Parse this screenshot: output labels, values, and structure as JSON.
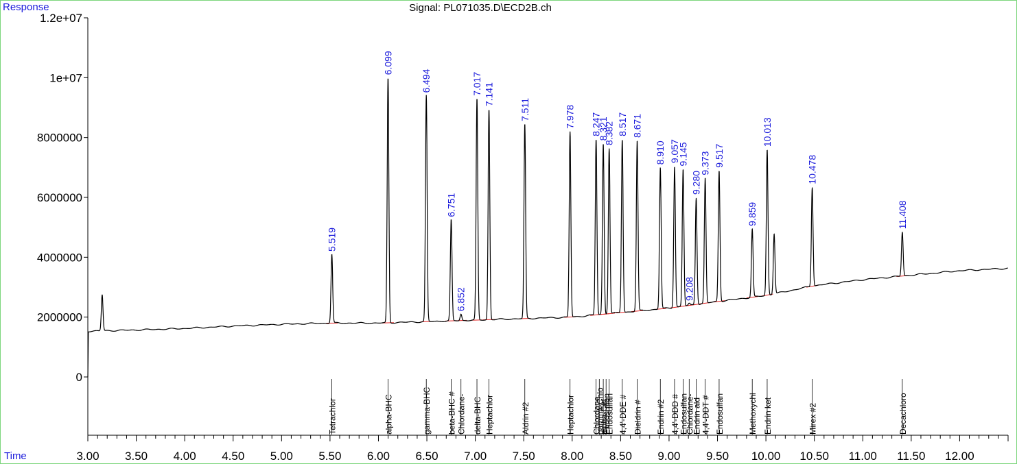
{
  "chart_data": {
    "type": "line",
    "title": "Signal: PL071035.D\\ECD2B.ch",
    "ylabel": "Response",
    "xlabel": "Time",
    "xlim": [
      3.0,
      12.5
    ],
    "ylim": [
      -2100000,
      12000000
    ],
    "x_ticks": [
      3.0,
      3.5,
      4.0,
      4.5,
      5.0,
      5.5,
      6.0,
      6.5,
      7.0,
      7.5,
      8.0,
      8.5,
      9.0,
      9.5,
      10.0,
      10.5,
      11.0,
      11.5,
      12.0
    ],
    "x_tick_labels": [
      "3.00",
      "3.50",
      "4.00",
      "4.50",
      "5.00",
      "5.50",
      "6.00",
      "6.50",
      "7.00",
      "7.50",
      "8.00",
      "8.50",
      "9.00",
      "9.50",
      "10.00",
      "10.50",
      "11.00",
      "11.50",
      "12.00"
    ],
    "y_ticks": [
      0,
      2000000,
      4000000,
      6000000,
      8000000,
      10000000,
      12000000
    ],
    "y_tick_labels": [
      "0",
      "2000000",
      "4000000",
      "6000000",
      "8000000",
      "1e+07",
      "1.2e+07"
    ],
    "baseline": [
      [
        3.0,
        1530000
      ],
      [
        3.5,
        1570000
      ],
      [
        4.0,
        1620000
      ],
      [
        4.5,
        1700000
      ],
      [
        5.0,
        1760000
      ],
      [
        5.5,
        1800000
      ],
      [
        6.0,
        1800000
      ],
      [
        6.5,
        1850000
      ],
      [
        7.0,
        1900000
      ],
      [
        7.5,
        1950000
      ],
      [
        8.0,
        2000000
      ],
      [
        8.5,
        2150000
      ],
      [
        9.0,
        2300000
      ],
      [
        9.5,
        2520000
      ],
      [
        10.0,
        2720000
      ],
      [
        10.5,
        3050000
      ],
      [
        11.0,
        3250000
      ],
      [
        11.5,
        3400000
      ],
      [
        12.0,
        3550000
      ],
      [
        12.5,
        3630000
      ]
    ],
    "peaks": [
      {
        "x": 3.148,
        "y": 2750000,
        "label": ""
      },
      {
        "x": 5.519,
        "y": 4100000,
        "label": "5.519"
      },
      {
        "x": 6.099,
        "y": 10000000,
        "label": "6.099"
      },
      {
        "x": 6.494,
        "y": 9400000,
        "label": "6.494"
      },
      {
        "x": 6.751,
        "y": 5250000,
        "label": "6.751"
      },
      {
        "x": 6.852,
        "y": 2100000,
        "label": "6.852"
      },
      {
        "x": 7.017,
        "y": 9300000,
        "label": "7.017"
      },
      {
        "x": 7.141,
        "y": 8950000,
        "label": "7.141"
      },
      {
        "x": 7.511,
        "y": 8450000,
        "label": "7.511"
      },
      {
        "x": 7.978,
        "y": 8200000,
        "label": "7.978"
      },
      {
        "x": 8.247,
        "y": 7950000,
        "label": "8.247"
      },
      {
        "x": 8.321,
        "y": 7800000,
        "label": "8.321"
      },
      {
        "x": 8.382,
        "y": 7650000,
        "label": "8.382"
      },
      {
        "x": 8.517,
        "y": 7950000,
        "label": "8.517"
      },
      {
        "x": 8.671,
        "y": 7900000,
        "label": "8.671"
      },
      {
        "x": 8.91,
        "y": 7000000,
        "label": "8.910"
      },
      {
        "x": 9.057,
        "y": 7050000,
        "label": "9.057"
      },
      {
        "x": 9.145,
        "y": 6950000,
        "label": "9.145"
      },
      {
        "x": 9.208,
        "y": 2450000,
        "label": "9.208"
      },
      {
        "x": 9.28,
        "y": 6000000,
        "label": "9.280"
      },
      {
        "x": 9.373,
        "y": 6650000,
        "label": "9.373"
      },
      {
        "x": 9.517,
        "y": 6900000,
        "label": "9.517"
      },
      {
        "x": 9.859,
        "y": 4950000,
        "label": "9.859"
      },
      {
        "x": 10.013,
        "y": 7600000,
        "label": "10.013"
      },
      {
        "x": 10.085,
        "y": 4800000,
        "label": ""
      },
      {
        "x": 10.478,
        "y": 6350000,
        "label": "10.478"
      },
      {
        "x": 11.408,
        "y": 4850000,
        "label": "11.408"
      }
    ],
    "compounds": [
      {
        "x": 5.519,
        "name": "Tetrachlor"
      },
      {
        "x": 6.099,
        "name": "alpha-BHC"
      },
      {
        "x": 6.494,
        "name": "gamma-BHC"
      },
      {
        "x": 6.751,
        "name": "beta-BHC #"
      },
      {
        "x": 6.852,
        "name": "Chlordane-"
      },
      {
        "x": 7.017,
        "name": "delta-BHC"
      },
      {
        "x": 7.141,
        "name": "Heptachlor"
      },
      {
        "x": 7.511,
        "name": "Aldrin #2"
      },
      {
        "x": 7.978,
        "name": "Heptachlor"
      },
      {
        "x": 8.247,
        "name": "Chlordane"
      },
      {
        "x": 8.28,
        "name": "gamma-Chlo"
      },
      {
        "x": 8.321,
        "name": "alpha-Chl"
      },
      {
        "x": 8.35,
        "name": "Endosulfan"
      },
      {
        "x": 8.382,
        "name": "Endosulfan"
      },
      {
        "x": 8.517,
        "name": "4,4'-DDE #"
      },
      {
        "x": 8.671,
        "name": "Dieldrin #"
      },
      {
        "x": 8.91,
        "name": "Endrin #2"
      },
      {
        "x": 9.057,
        "name": "4,4'-DDD #"
      },
      {
        "x": 9.145,
        "name": "Endosulfan"
      },
      {
        "x": 9.208,
        "name": "Chlordane-"
      },
      {
        "x": 9.28,
        "name": "Endrin ald"
      },
      {
        "x": 9.373,
        "name": "4,4'-DDT #"
      },
      {
        "x": 9.517,
        "name": "Endosulfan"
      },
      {
        "x": 9.859,
        "name": "Methoxychl"
      },
      {
        "x": 10.013,
        "name": "Endrin ket"
      },
      {
        "x": 10.478,
        "name": "Mirex #2"
      },
      {
        "x": 11.408,
        "name": "Decachloro"
      }
    ],
    "colors": {
      "signal": "#000000",
      "baseline_marks": "#e02020",
      "peak_labels": "#1a1adb",
      "axis_titles": "#1a1adb",
      "frame": "#7bd67b"
    },
    "grid": false
  }
}
